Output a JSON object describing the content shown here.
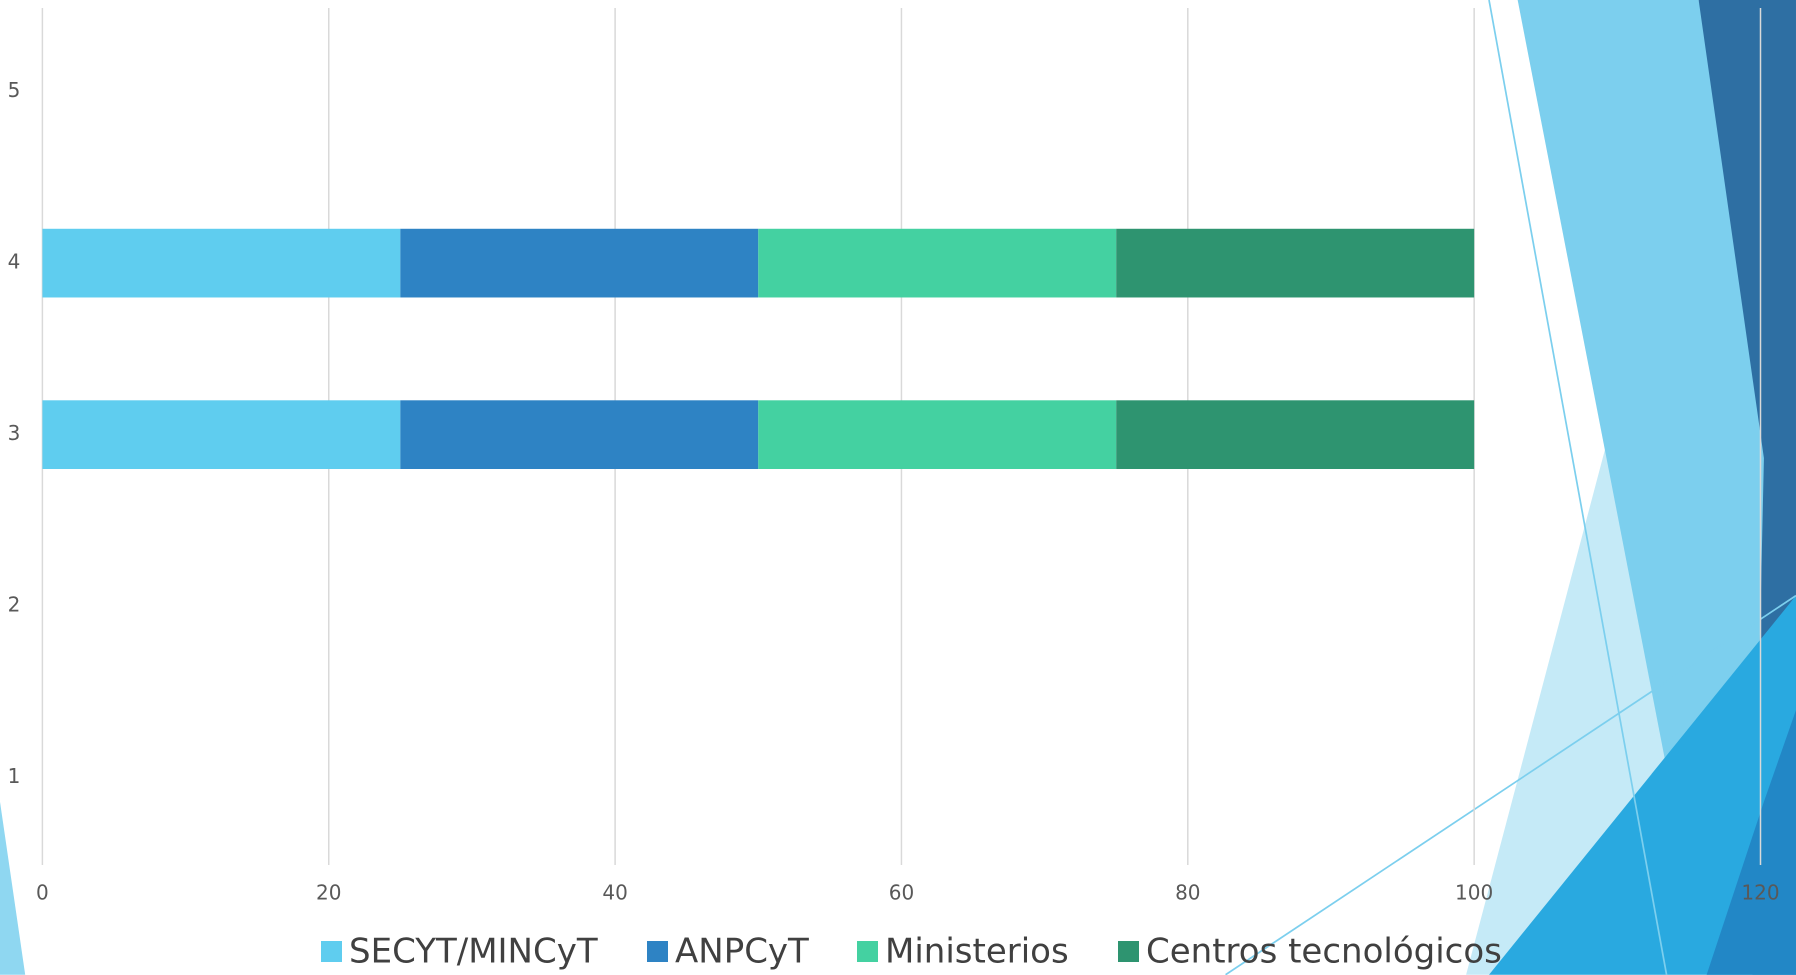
{
  "chart_data": {
    "type": "stacked-barh",
    "categories": [
      "1",
      "2",
      "3",
      "4",
      "5"
    ],
    "series": [
      {
        "name": "SECYT/MINCyT",
        "color": "#5fcdef",
        "values": [
          null,
          null,
          25,
          25,
          null
        ]
      },
      {
        "name": "ANPCyT",
        "color": "#2e83c4",
        "values": [
          null,
          null,
          25,
          25,
          null
        ]
      },
      {
        "name": "Ministerios",
        "color": "#44d1a1",
        "values": [
          null,
          null,
          25,
          25,
          null
        ]
      },
      {
        "name": "Centros tecnológicos",
        "color": "#2e9470",
        "values": [
          null,
          null,
          25,
          25,
          null
        ]
      }
    ],
    "xlim": [
      0,
      120
    ],
    "xticks": [
      0,
      20,
      40,
      60,
      80,
      100,
      120
    ],
    "grid": true,
    "legend": "bottom"
  }
}
